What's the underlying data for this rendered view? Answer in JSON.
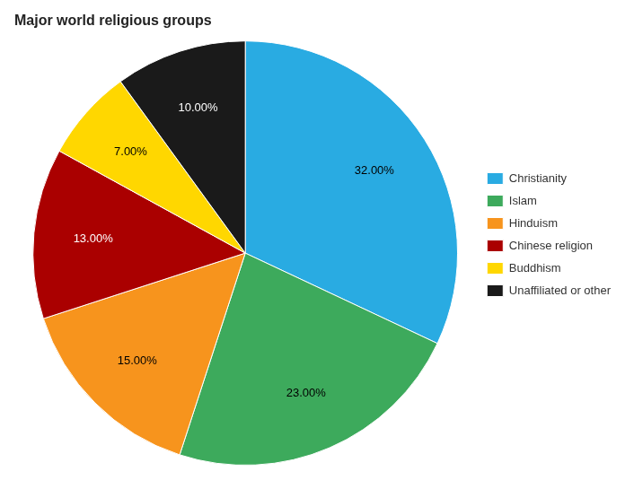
{
  "chart_data": {
    "type": "pie",
    "title": "Major world religious groups",
    "categories": [
      "Christianity",
      "Islam",
      "Hinduism",
      "Chinese religion",
      "Buddhism",
      "Unaffiliated or other"
    ],
    "values": [
      32,
      23,
      15,
      13,
      7,
      10
    ],
    "value_labels": [
      "32.00%",
      "23.00%",
      "15.00%",
      "13.00%",
      "7.00%",
      "10.00%"
    ],
    "colors": [
      "#29ABE2",
      "#3DAA5C",
      "#F7941D",
      "#AA0000",
      "#FFD700",
      "#1A1A1A"
    ],
    "legend": "right",
    "data_labels": true
  }
}
